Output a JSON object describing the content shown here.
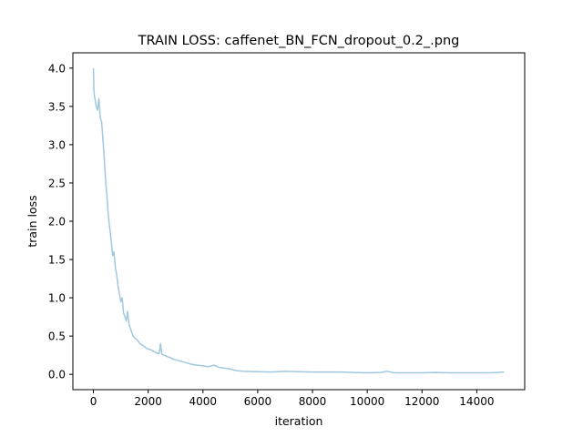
{
  "chart_data": {
    "type": "line",
    "title": "TRAIN LOSS: caffenet_BN_FCN_dropout_0.2_.png",
    "xlabel": "iteration",
    "ylabel": "train loss",
    "xlim": [
      -750,
      15750
    ],
    "ylim": [
      -0.2,
      4.2
    ],
    "xticks": [
      0,
      2000,
      4000,
      6000,
      8000,
      10000,
      12000,
      14000
    ],
    "xtick_labels": [
      "0",
      "2000",
      "4000",
      "6000",
      "8000",
      "10000",
      "12000",
      "14000"
    ],
    "yticks": [
      0.0,
      0.5,
      1.0,
      1.5,
      2.0,
      2.5,
      3.0,
      3.5,
      4.0
    ],
    "ytick_labels": [
      "0.0",
      "0.5",
      "1.0",
      "1.5",
      "2.0",
      "2.5",
      "3.0",
      "3.5",
      "4.0"
    ],
    "grid": false,
    "series": [
      {
        "color": "#a0c8e0",
        "x": [
          0,
          20,
          40,
          60,
          80,
          100,
          150,
          200,
          250,
          300,
          350,
          400,
          450,
          500,
          550,
          600,
          650,
          700,
          750,
          800,
          850,
          900,
          950,
          1000,
          1050,
          1100,
          1150,
          1200,
          1250,
          1300,
          1350,
          1400,
          1450,
          1500,
          1600,
          1700,
          1800,
          1900,
          2000,
          2100,
          2200,
          2300,
          2400,
          2450,
          2500,
          2600,
          2700,
          2800,
          2900,
          3000,
          3200,
          3400,
          3600,
          3800,
          4000,
          4200,
          4400,
          4600,
          4800,
          5000,
          5200,
          5500,
          6000,
          6500,
          7000,
          7500,
          8000,
          8500,
          9000,
          9500,
          10000,
          10500,
          10700,
          11000,
          11500,
          12000,
          12500,
          13000,
          13500,
          14000,
          14500,
          15000
        ],
        "y": [
          4.0,
          3.7,
          3.62,
          3.6,
          3.55,
          3.5,
          3.45,
          3.6,
          3.35,
          3.3,
          3.05,
          2.8,
          2.5,
          2.3,
          2.05,
          1.9,
          1.75,
          1.55,
          1.6,
          1.4,
          1.3,
          1.15,
          1.05,
          0.95,
          1.0,
          0.8,
          0.75,
          0.7,
          0.82,
          0.65,
          0.6,
          0.55,
          0.5,
          0.48,
          0.45,
          0.4,
          0.38,
          0.35,
          0.33,
          0.32,
          0.3,
          0.28,
          0.27,
          0.4,
          0.26,
          0.25,
          0.23,
          0.22,
          0.2,
          0.19,
          0.17,
          0.15,
          0.13,
          0.12,
          0.11,
          0.1,
          0.12,
          0.09,
          0.08,
          0.07,
          0.05,
          0.04,
          0.035,
          0.03,
          0.04,
          0.035,
          0.03,
          0.03,
          0.03,
          0.025,
          0.02,
          0.025,
          0.04,
          0.02,
          0.02,
          0.02,
          0.025,
          0.02,
          0.02,
          0.02,
          0.02,
          0.03
        ]
      }
    ]
  }
}
